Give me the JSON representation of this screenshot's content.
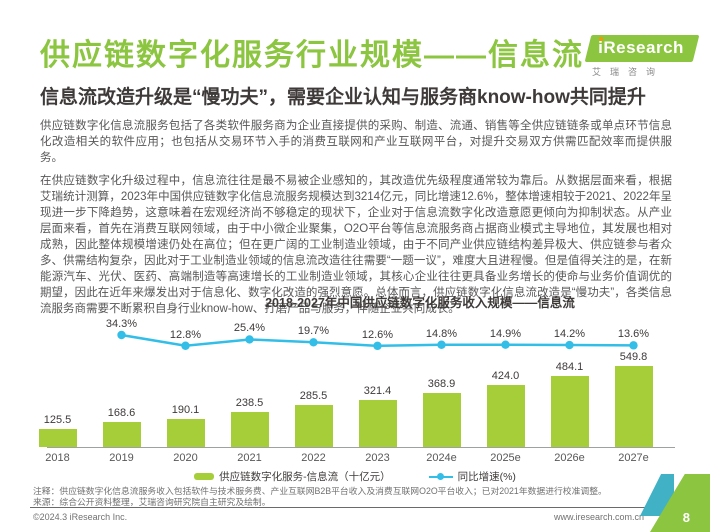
{
  "header": {
    "title": "供应链数字化服务行业规模——信息流",
    "subtitle": "信息流改造升级是“慢功夫”，需要企业认知与服务商know-how共同提升",
    "logo": {
      "i": "i",
      "text": "Research",
      "subtext": "艾瑞咨询"
    }
  },
  "body": {
    "paragraph1": "供应链数字化信息流服务包括了各类软件服务商为企业直接提供的采购、制造、流通、销售等全供应链链条或单点环节信息化改造相关的软件应用；也包括从交易环节入手的消费互联网和产业互联网平台，对提升交易双方供需匹配效率而提供服务。",
    "paragraph2": "在供应链数字化升级过程中，信息流往往是最不易被企业感知的，其改造优先级程度通常较为靠后。从数据层面来看，根据艾瑞统计测算，2023年中国供应链数字化信息流服务规模达到3214亿元，同比增速12.6%，整体增速相较于2021、2022年呈现进一步下降趋势，这意味着在宏观经济尚不够稳定的现状下，企业对于信息流数字化改造意愿更倾向为抑制状态。从产业层面来看，首先在消费互联网领域，由于中小微企业聚集，O2O平台等信息流服务商占据商业模式主导地位，其发展也相对成熟，因此整体规模增速仍处在高位；但在更广阔的工业制造业领域，由于不同产业供应链结构差异极大、供应链参与者众多、供需结构复杂，因此对于工业制造业领域的信息流改造往往需要“一题一议”，难度大且进程慢。但是值得关注的是，在新能源汽车、光伏、医药、高端制造等高速增长的工业制造业领域，其核心企业往往更具备业务增长的使命与业务价值调优的期望，因此在近年来爆发出对于信息化、数字化改造的强烈意愿。总体而言，供应链数字化信息流改造是“慢功夫”，各类信息流服务商需要不断累积自身行业know-how、打磨产品与服务，伴随企业共同成长。"
  },
  "chart_data": {
    "type": "bar",
    "title": "2018-2027年中国供应链数字化服务收入规模——信息流",
    "categories": [
      "2018",
      "2019",
      "2020",
      "2021",
      "2022",
      "2023",
      "2024e",
      "2025e",
      "2026e",
      "2027e"
    ],
    "series": [
      {
        "name": "供应链数字化服务-信息流（十亿元）",
        "type": "bar",
        "color": "#a5ce39",
        "values": [
          125.5,
          168.6,
          190.1,
          238.5,
          285.5,
          321.4,
          368.9,
          424.0,
          484.1,
          549.8
        ]
      },
      {
        "name": "同比增速(%)",
        "type": "line",
        "color": "#33bee8",
        "start_index": 1,
        "values": [
          34.3,
          12.8,
          25.4,
          19.7,
          12.6,
          14.8,
          14.9,
          14.2,
          13.6
        ]
      }
    ],
    "xlabel": "",
    "ylabel": "",
    "grid": false,
    "legend_position": "bottom",
    "value_labels": true
  },
  "footnotes": {
    "note": "注释：供应链数字化信息流服务收入包括软件与技术服务费、产业互联网B2B平台收入及消费互联网O2O平台收入；已对2021年数据进行校准调整。",
    "source": "来源：综合公开资料整理，艾瑞咨询研究院自主研究及绘制。"
  },
  "footer": {
    "copyright": "©2024.3 iResearch Inc.",
    "website": "www.iresearch.com.cn",
    "page_number": "8"
  },
  "colors": {
    "brand_green": "#8cc540",
    "bar_green": "#a5ce39",
    "line_blue": "#33bee8",
    "heading_dark": "#3e3a39",
    "body_gray": "#595757",
    "note_gray": "#727171",
    "corner_teal": "#41b1c5"
  }
}
